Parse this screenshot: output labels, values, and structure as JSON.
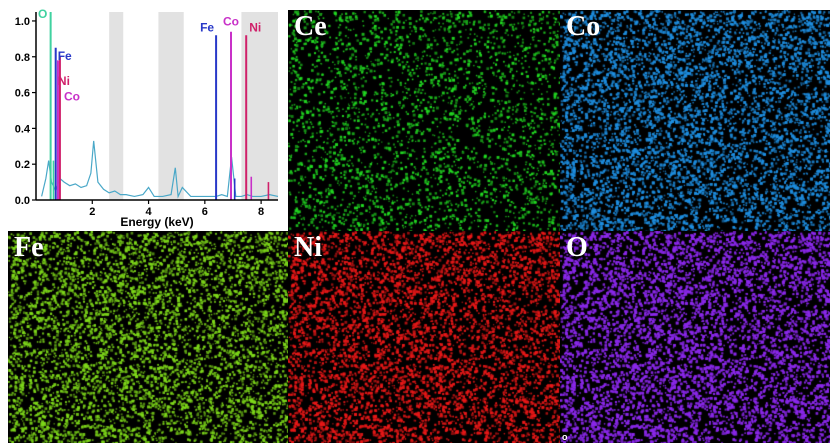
{
  "chart_data": {
    "type": "line",
    "xlabel": "Energy (keV)",
    "ylabel": "",
    "xlim": [
      0,
      8.6
    ],
    "ylim": [
      0,
      1.05
    ],
    "x_ticks": [
      2,
      4,
      6,
      8
    ],
    "y_ticks": [
      0.0,
      0.2,
      0.4,
      0.6,
      0.8,
      1.0
    ],
    "y_tick_labels": [
      "0.0",
      "0.2",
      "0.4",
      "0.6",
      "0.8",
      "1.0"
    ],
    "shaded_bands": [
      [
        2.6,
        3.1
      ],
      [
        4.35,
        5.25
      ],
      [
        7.3,
        8.6
      ]
    ],
    "series": [
      {
        "color": "#4aa8c8",
        "x": [
          0.2,
          0.35,
          0.45,
          0.55,
          0.7,
          0.85,
          1.0,
          1.2,
          1.4,
          1.6,
          1.8,
          1.95,
          2.05,
          2.2,
          2.4,
          2.6,
          2.8,
          3.0,
          3.2,
          3.5,
          3.8,
          4.0,
          4.2,
          4.5,
          4.8,
          4.95,
          5.05,
          5.2,
          5.5,
          6.0,
          6.4,
          6.6,
          6.8,
          6.95,
          7.1,
          7.3,
          7.5,
          7.7,
          8.0,
          8.3,
          8.6
        ],
        "y": [
          0.02,
          0.12,
          0.22,
          0.1,
          0.05,
          0.12,
          0.1,
          0.08,
          0.09,
          0.07,
          0.08,
          0.15,
          0.33,
          0.1,
          0.06,
          0.04,
          0.05,
          0.03,
          0.03,
          0.02,
          0.03,
          0.07,
          0.02,
          0.02,
          0.03,
          0.18,
          0.02,
          0.07,
          0.02,
          0.02,
          0.02,
          0.03,
          0.02,
          0.24,
          0.02,
          0.02,
          0.03,
          0.02,
          0.02,
          0.03,
          0.02
        ]
      }
    ],
    "peaks": [
      {
        "label": "O",
        "x": 0.52,
        "y": 1.05,
        "color": "#3fd2a0"
      },
      {
        "label": "Fe",
        "x": 0.7,
        "y": 0.85,
        "color": "#2838c8"
      },
      {
        "label": "Ni",
        "x": 0.85,
        "y": 0.8,
        "color": "#d0206a"
      },
      {
        "label": "Co",
        "x": 0.78,
        "y": 0.78,
        "color": "#c830c8"
      },
      {
        "label": "Fe",
        "x": 6.4,
        "y": 0.92,
        "color": "#2838c8"
      },
      {
        "label": "Co",
        "x": 6.93,
        "y": 0.94,
        "color": "#c830c8"
      },
      {
        "label": "Ni",
        "x": 7.47,
        "y": 0.92,
        "color": "#d0206a"
      }
    ],
    "minor_peaks": [
      {
        "x": 0.62,
        "y": 0.22,
        "color": "#3fd2a0"
      },
      {
        "x": 7.06,
        "y": 0.12,
        "color": "#2838c8"
      },
      {
        "x": 7.65,
        "y": 0.13,
        "color": "#c830c8"
      },
      {
        "x": 8.26,
        "y": 0.1,
        "color": "#d0206a"
      }
    ]
  },
  "maps": [
    {
      "label": "Ce",
      "color": "#22dd22",
      "density": 0.55
    },
    {
      "label": "Co",
      "color": "#1e8ee0",
      "density": 1.6
    },
    {
      "label": "Fe",
      "color": "#7ed81a",
      "density": 1.3
    },
    {
      "label": "Ni",
      "color": "#e81818",
      "density": 1.5
    },
    {
      "label": "O",
      "color": "#8a28ea",
      "density": 2.2
    }
  ],
  "corner_marks": {
    "o_map": "o"
  }
}
